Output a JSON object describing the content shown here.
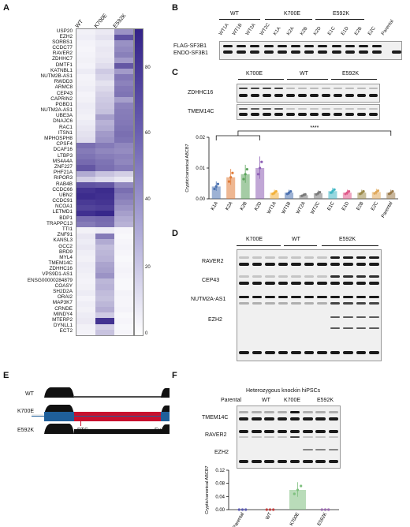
{
  "panels": {
    "A": "A",
    "B": "B",
    "C": "C",
    "D": "D",
    "E": "E",
    "F": "F"
  },
  "heatmap": {
    "columns": [
      "WT",
      "K700E",
      "E592K"
    ],
    "genes": [
      "USP20",
      "EZH2",
      "SORBS1",
      "CCDC77",
      "RAVER2",
      "ZDHHC7",
      "DMTF1",
      "KATNBL1",
      "NUTM2B-AS1",
      "RWDD3",
      "ARMC8",
      "CEP43",
      "CAPRIN2",
      "PGBD1",
      "NUTM2A-AS1",
      "UBE3A",
      "DNAJC6",
      "RAC1",
      "ITSN1",
      "MPHOSPH8",
      "CPSF4",
      "DCAF16",
      "LTBP3",
      "MS4A4A",
      "ZNF227",
      "PHF21A",
      "RIPOR3",
      "RAB4B",
      "CCDC66",
      "UBN2",
      "CCDC91",
      "NCOA1",
      "LETMD1",
      "BDP1",
      "TRAPPC13",
      "TTI1",
      "ZNF91",
      "KANSL3",
      "GCC2",
      "BRD9",
      "MYL4",
      "TMEM14C",
      "ZDHHC16",
      "VPS9D1-AS1",
      "ENSG00000284879",
      "COASY",
      "SH2D2A",
      "ORAI2",
      "MAP3K7",
      "CRNDE",
      "MINDY4",
      "MTERP2",
      "DYNLL1",
      "ECT2"
    ],
    "values": [
      [
        6,
        9,
        45
      ],
      [
        7,
        12,
        72
      ],
      [
        5,
        8,
        46
      ],
      [
        4,
        10,
        49
      ],
      [
        5,
        9,
        53
      ],
      [
        6,
        11,
        42
      ],
      [
        5,
        14,
        70
      ],
      [
        8,
        22,
        42
      ],
      [
        5,
        18,
        56
      ],
      [
        6,
        12,
        52
      ],
      [
        7,
        16,
        56
      ],
      [
        5,
        20,
        58
      ],
      [
        6,
        22,
        40
      ],
      [
        8,
        24,
        52
      ],
      [
        7,
        26,
        54
      ],
      [
        6,
        40,
        55
      ],
      [
        8,
        32,
        56
      ],
      [
        10,
        35,
        58
      ],
      [
        12,
        42,
        60
      ],
      [
        14,
        45,
        58
      ],
      [
        60,
        55,
        50
      ],
      [
        55,
        50,
        48
      ],
      [
        58,
        54,
        52
      ],
      [
        62,
        58,
        50
      ],
      [
        70,
        60,
        55
      ],
      [
        35,
        25,
        20
      ],
      [
        20,
        15,
        10
      ],
      [
        72,
        70,
        50
      ],
      [
        85,
        88,
        60
      ],
      [
        88,
        86,
        55
      ],
      [
        82,
        84,
        50
      ],
      [
        78,
        80,
        45
      ],
      [
        86,
        90,
        40
      ],
      [
        60,
        62,
        35
      ],
      [
        55,
        60,
        32
      ],
      [
        6,
        8,
        4
      ],
      [
        10,
        55,
        3
      ],
      [
        8,
        35,
        4
      ],
      [
        10,
        28,
        5
      ],
      [
        7,
        30,
        4
      ],
      [
        6,
        32,
        3
      ],
      [
        8,
        38,
        4
      ],
      [
        7,
        40,
        5
      ],
      [
        6,
        45,
        4
      ],
      [
        5,
        30,
        3
      ],
      [
        6,
        32,
        3
      ],
      [
        8,
        28,
        5
      ],
      [
        5,
        26,
        4
      ],
      [
        7,
        30,
        4
      ],
      [
        6,
        34,
        5
      ],
      [
        8,
        22,
        3
      ],
      [
        9,
        85,
        4
      ],
      [
        6,
        20,
        3
      ],
      [
        5,
        25,
        4
      ]
    ],
    "colorbar_ticks": [
      "80",
      "60",
      "40",
      "20",
      "0"
    ]
  },
  "panelB": {
    "groups": [
      "WT",
      "K700E",
      "E592K"
    ],
    "lanes": [
      "WT1A",
      "WT1B",
      "WT2A",
      "WT2C",
      "K1A",
      "K2A",
      "K2B",
      "K2D",
      "E1C",
      "E1D",
      "E2B",
      "E2C",
      "Parental"
    ],
    "rows": [
      "FLAG-SF3B1",
      "ENDO-SF3B1"
    ]
  },
  "panelC": {
    "groups": [
      "K700E",
      "WT",
      "E592K"
    ],
    "rows": [
      "ZDHHC16",
      "TMEM14C"
    ],
    "significance": "****",
    "chart_data": {
      "type": "bar",
      "categories": [
        "K1A",
        "K2A",
        "K2B",
        "K2D",
        "WT1A",
        "WT1B",
        "WT2A",
        "WT2C",
        "E1C",
        "E1D",
        "E2B",
        "E2C",
        "Parental"
      ],
      "values": [
        0.004,
        0.007,
        0.008,
        0.01,
        0.002,
        0.002,
        0.0012,
        0.0018,
        0.0025,
        0.002,
        0.002,
        0.0022,
        0.002
      ],
      "colors": [
        "#4c72b0",
        "#e07b39",
        "#5ba35b",
        "#8e5fb5",
        "#f2b13a",
        "#4c72b0",
        "#7a7a7a",
        "#7a7a7a",
        "#3fb6c4",
        "#e05a8a",
        "#9b8a4a",
        "#e0a85a",
        "#9a7a4a"
      ],
      "ylabel": "Cryptic/canonical ABCB7",
      "yticks": [
        "0.00",
        "0.01",
        "0.02"
      ],
      "ylim": [
        0,
        0.02
      ]
    }
  },
  "panelD": {
    "groups": [
      "K700E",
      "WT",
      "E592K"
    ],
    "rows": [
      "RAVER2",
      "CEP43",
      "NUTM2A-AS1",
      "EZH2"
    ]
  },
  "panelE": {
    "tracks": [
      "WT",
      "K700E",
      "E592K"
    ],
    "exon_left": "Ex12",
    "exon_right": "Ex13",
    "ptc": "PTC"
  },
  "panelF": {
    "title": "Heterozygous knockin hiPSCs",
    "groups": [
      "Parental",
      "WT",
      "K700E",
      "E592K"
    ],
    "rows": [
      "TMEM14C",
      "RAVER2",
      "EZH2"
    ],
    "chart_data": {
      "type": "bar",
      "categories": [
        "Parental",
        "WT",
        "K700E",
        "E592K"
      ],
      "values": [
        0.0,
        0.0,
        0.06,
        0.0
      ],
      "colors": [
        "#5a5ab0",
        "#c04040",
        "#7fc07f",
        "#9a6ab0"
      ],
      "ylabel": "Cryptic/canonical ABCB7",
      "yticks": [
        "0.00",
        "0.04",
        "0.08",
        "0.12"
      ],
      "ylim": [
        0,
        0.12
      ]
    }
  }
}
